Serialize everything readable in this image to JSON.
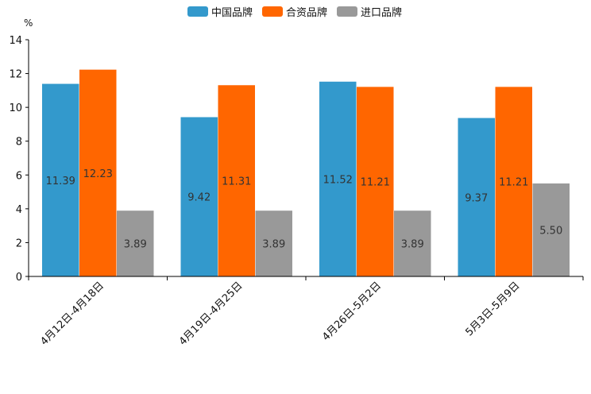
{
  "chart_data": {
    "type": "bar",
    "title": "",
    "xlabel": "",
    "ylabel": "%",
    "ylim": [
      0,
      14
    ],
    "yticks": [
      0,
      2,
      4,
      6,
      8,
      10,
      12,
      14
    ],
    "grid": false,
    "legend_position": "top-center",
    "categories": [
      "4月12日-4月18日",
      "4月19日-4月25日",
      "4月26日-5月2日",
      "5月3日-5月9日"
    ],
    "series": [
      {
        "name": "中国品牌",
        "color": "#3399cc",
        "values": [
          11.39,
          9.42,
          11.52,
          9.37
        ],
        "labels": [
          "11.39",
          "9.42",
          "11.52",
          "9.37"
        ]
      },
      {
        "name": "合资品牌",
        "color": "#ff6600",
        "values": [
          12.23,
          11.31,
          11.21,
          11.21
        ],
        "labels": [
          "12.23",
          "11.31",
          "11.21",
          "11.21"
        ]
      },
      {
        "name": "进口品牌",
        "color": "#999999",
        "values": [
          3.89,
          3.89,
          3.89,
          5.5
        ],
        "labels": [
          "3.89",
          "3.89",
          "3.89",
          "5.50"
        ]
      }
    ]
  }
}
